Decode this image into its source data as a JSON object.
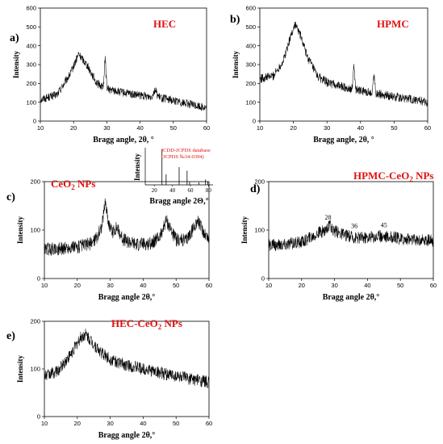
{
  "chart_data": [
    {
      "id": "a",
      "panel_label": "a)",
      "title": "HEC",
      "type": "line",
      "xlabel": "Bragg angle, 2θ, °",
      "ylabel": "Intensity",
      "xlim": [
        10,
        60
      ],
      "ylim": [
        0,
        600
      ],
      "xticks": [
        "10",
        "20",
        "30",
        "40",
        "50",
        "60"
      ],
      "yticks": [
        "0",
        "100",
        "200",
        "300",
        "400",
        "500",
        "600"
      ],
      "profile": {
        "baseline": [
          [
            10,
            115
          ],
          [
            15,
            140
          ],
          [
            19,
            250
          ],
          [
            21.5,
            355
          ],
          [
            24,
            300
          ],
          [
            27,
            200
          ],
          [
            30,
            170
          ],
          [
            35,
            150
          ],
          [
            40,
            135
          ],
          [
            45,
            128
          ],
          [
            50,
            110
          ],
          [
            55,
            90
          ],
          [
            60,
            70
          ]
        ],
        "peaks": [
          [
            29.5,
            150,
            0.25
          ],
          [
            44.5,
            35,
            0.5
          ]
        ],
        "noise": 22
      }
    },
    {
      "id": "b",
      "panel_label": "b)",
      "title": "HPMC",
      "type": "line",
      "xlabel": "Bragg angle, 2θ, °",
      "ylabel": "Intensity",
      "xlim": [
        10,
        60
      ],
      "ylim": [
        0,
        600
      ],
      "xticks": [
        "10",
        "20",
        "30",
        "40",
        "50",
        "60"
      ],
      "yticks": [
        "0",
        "100",
        "200",
        "300",
        "400",
        "500",
        "600"
      ],
      "profile": {
        "baseline": [
          [
            10,
            225
          ],
          [
            14,
            240
          ],
          [
            17,
            320
          ],
          [
            19,
            440
          ],
          [
            20.5,
            515
          ],
          [
            22,
            460
          ],
          [
            24,
            350
          ],
          [
            27,
            240
          ],
          [
            30,
            205
          ],
          [
            34,
            185
          ],
          [
            40,
            160
          ],
          [
            45,
            145
          ],
          [
            50,
            130
          ],
          [
            55,
            115
          ],
          [
            60,
            100
          ]
        ],
        "peaks": [
          [
            38,
            130,
            0.22
          ],
          [
            44,
            95,
            0.25
          ]
        ],
        "noise": 24
      }
    },
    {
      "id": "c",
      "panel_label": "c)",
      "title": "CeO2 NPs",
      "type": "line",
      "xlabel": "Bragg angle  2θ,°",
      "ylabel": "Intensity",
      "xlim": [
        10,
        60
      ],
      "ylim": [
        0,
        200
      ],
      "xticks": [
        "10",
        "20",
        "30",
        "40",
        "50",
        "60"
      ],
      "yticks": [
        "0",
        "100",
        "200"
      ],
      "profile": {
        "baseline": [
          [
            10,
            60
          ],
          [
            15,
            62
          ],
          [
            20,
            65
          ],
          [
            24,
            72
          ],
          [
            26,
            85
          ],
          [
            27.5,
            110
          ],
          [
            28.5,
            160
          ],
          [
            29.5,
            115
          ],
          [
            30.5,
            95
          ],
          [
            32,
            105
          ],
          [
            34,
            80
          ],
          [
            38,
            70
          ],
          [
            42,
            72
          ],
          [
            45,
            85
          ],
          [
            47,
            120
          ],
          [
            48.5,
            100
          ],
          [
            50,
            80
          ],
          [
            53,
            78
          ],
          [
            55,
            100
          ],
          [
            56.5,
            120
          ],
          [
            58,
            100
          ],
          [
            60,
            80
          ]
        ],
        "peaks": [],
        "noise": 14
      },
      "inset": {
        "note_line1": "ICDD-JCPDS database",
        "note_line2": "(JCPDS №34-0394)",
        "ylabel": "Intensity",
        "xlabel": "Bragg angle 2Θ,°",
        "xlim": [
          10,
          85
        ],
        "xticks": [
          "20",
          "40",
          "60",
          "80"
        ],
        "peaks_x": [
          28.5,
          33.1,
          47.5,
          56.3,
          59.1,
          69.4,
          76.7,
          79.1
        ],
        "peaks_h": [
          1.0,
          0.3,
          0.5,
          0.4,
          0.08,
          0.07,
          0.15,
          0.1
        ]
      }
    },
    {
      "id": "d",
      "panel_label": "d)",
      "title": "HPMC-CeO2 NPs",
      "type": "line",
      "xlabel": "Bragg angle  2θ,°",
      "ylabel": "Intensity",
      "xlim": [
        10,
        60
      ],
      "ylim": [
        0,
        200
      ],
      "xticks": [
        "10",
        "20",
        "30",
        "40",
        "50",
        "60"
      ],
      "yticks": [
        "0",
        "100",
        "200"
      ],
      "annotations": [
        {
          "x": 28,
          "y": 122,
          "text": "28"
        },
        {
          "x": 36,
          "y": 104,
          "text": "36"
        },
        {
          "x": 45,
          "y": 106,
          "text": "45"
        }
      ],
      "profile": {
        "baseline": [
          [
            10,
            68
          ],
          [
            15,
            70
          ],
          [
            20,
            75
          ],
          [
            24,
            90
          ],
          [
            27,
            100
          ],
          [
            28.5,
            108
          ],
          [
            30,
            98
          ],
          [
            33,
            90
          ],
          [
            36,
            85
          ],
          [
            40,
            85
          ],
          [
            45,
            88
          ],
          [
            50,
            82
          ],
          [
            55,
            80
          ],
          [
            60,
            78
          ]
        ],
        "peaks": [],
        "noise": 13
      }
    },
    {
      "id": "e",
      "panel_label": "e)",
      "title": "HEC-CeO2 NPs",
      "type": "line",
      "xlabel": "Bragg angle  2θ,°",
      "ylabel": "Intensity",
      "xlim": [
        10,
        60
      ],
      "ylim": [
        0,
        200
      ],
      "xticks": [
        "10",
        "20",
        "30",
        "40",
        "50",
        "60"
      ],
      "yticks": [
        "0",
        "100",
        "200"
      ],
      "profile": {
        "baseline": [
          [
            10,
            85
          ],
          [
            14,
            95
          ],
          [
            18,
            130
          ],
          [
            21,
            165
          ],
          [
            22.5,
            172
          ],
          [
            24,
            160
          ],
          [
            27,
            135
          ],
          [
            30,
            120
          ],
          [
            35,
            108
          ],
          [
            40,
            100
          ],
          [
            45,
            92
          ],
          [
            50,
            85
          ],
          [
            55,
            78
          ],
          [
            60,
            72
          ]
        ],
        "peaks": [],
        "noise": 13
      }
    }
  ]
}
